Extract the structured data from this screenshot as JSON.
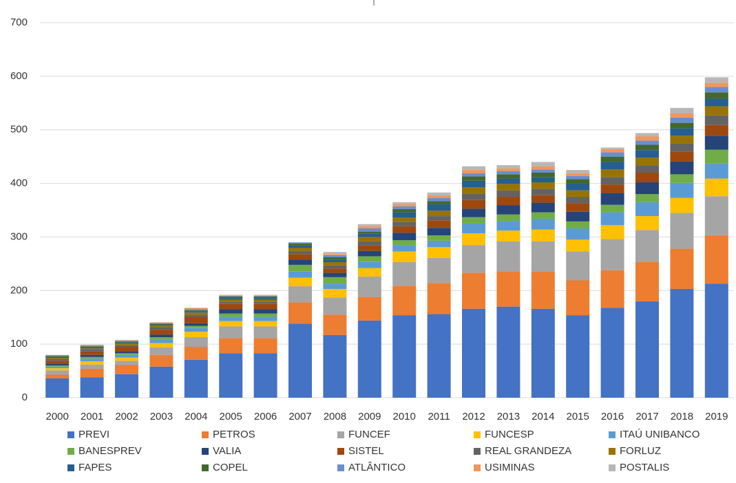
{
  "chart_data": {
    "type": "stacked_bar",
    "categories": [
      "2000",
      "2001",
      "2002",
      "2003",
      "2004",
      "2005",
      "2006",
      "2007",
      "2008",
      "2009",
      "2010",
      "2011",
      "2012",
      "2013",
      "2014",
      "2015",
      "2016",
      "2017",
      "2018",
      "2019"
    ],
    "ylim": [
      0,
      700
    ],
    "yticks": [
      0,
      100,
      200,
      300,
      400,
      500,
      600,
      700
    ],
    "grid": true,
    "legend": "bottom",
    "series": [
      {
        "name": "PREVI",
        "color": "#4472c4",
        "values": [
          36,
          38,
          44,
          58,
          71,
          83,
          83,
          138,
          117,
          144,
          154,
          156,
          166,
          170,
          166,
          154,
          168,
          180,
          203,
          213
        ]
      },
      {
        "name": "PETROS",
        "color": "#ed7d31",
        "values": [
          7,
          16,
          17,
          22,
          24,
          28,
          28,
          40,
          38,
          44,
          55,
          58,
          67,
          65,
          69,
          65,
          70,
          73,
          75,
          90
        ]
      },
      {
        "name": "FUNCEF",
        "color": "#a5a5a5",
        "values": [
          8,
          8,
          8,
          14,
          18,
          22,
          22,
          30,
          32,
          38,
          44,
          47,
          52,
          57,
          57,
          54,
          58,
          60,
          67,
          73
        ]
      },
      {
        "name": "FUNCESP",
        "color": "#ffc000",
        "values": [
          4,
          6,
          6,
          8,
          10,
          10,
          10,
          16,
          16,
          16,
          20,
          20,
          22,
          20,
          22,
          22,
          26,
          26,
          28,
          33
        ]
      },
      {
        "name": "ITAÚ UNIBANCO",
        "color": "#5b9bd5",
        "values": [
          3,
          5,
          5,
          7,
          7,
          8,
          8,
          12,
          10,
          12,
          12,
          12,
          18,
          18,
          20,
          21,
          24,
          26,
          28,
          28
        ]
      },
      {
        "name": "BANESPREV",
        "color": "#70ad47",
        "values": [
          2,
          3,
          3,
          4,
          4,
          6,
          6,
          12,
          12,
          10,
          9,
          10,
          12,
          12,
          12,
          13,
          14,
          15,
          16,
          26
        ]
      },
      {
        "name": "VALIA",
        "color": "#264478",
        "values": [
          3,
          4,
          4,
          5,
          5,
          8,
          8,
          10,
          8,
          10,
          14,
          14,
          16,
          17,
          18,
          18,
          22,
          22,
          24,
          26
        ]
      },
      {
        "name": "SISTEL",
        "color": "#9e480e",
        "values": [
          6,
          7,
          8,
          9,
          12,
          10,
          10,
          10,
          8,
          10,
          12,
          14,
          16,
          16,
          14,
          16,
          16,
          18,
          18,
          20
        ]
      },
      {
        "name": "REAL GRANDEZA",
        "color": "#636363",
        "values": [
          3,
          3,
          3,
          4,
          4,
          4,
          4,
          6,
          6,
          8,
          8,
          8,
          12,
          12,
          12,
          12,
          14,
          14,
          16,
          18
        ]
      },
      {
        "name": "FORLUZ",
        "color": "#997300",
        "values": [
          2,
          2,
          3,
          3,
          4,
          4,
          4,
          6,
          6,
          8,
          8,
          10,
          12,
          12,
          12,
          12,
          14,
          14,
          14,
          17
        ]
      },
      {
        "name": "FAPES",
        "color": "#255e91",
        "values": [
          2,
          2,
          2,
          2,
          2,
          3,
          3,
          4,
          5,
          6,
          10,
          12,
          12,
          10,
          10,
          13,
          14,
          14,
          14,
          14
        ]
      },
      {
        "name": "COPEL",
        "color": "#43682b",
        "values": [
          2,
          2,
          2,
          2,
          2,
          3,
          3,
          4,
          4,
          4,
          6,
          6,
          8,
          8,
          8,
          8,
          10,
          10,
          10,
          12
        ]
      },
      {
        "name": "ATLÂNTICO",
        "color": "#698ed0",
        "values": [
          1,
          1,
          1,
          1,
          2,
          1,
          1,
          2,
          4,
          6,
          5,
          6,
          6,
          6,
          6,
          6,
          8,
          8,
          10,
          10
        ]
      },
      {
        "name": "USIMINAS",
        "color": "#f1975a",
        "values": [
          0,
          1,
          1,
          1,
          2,
          1,
          1,
          0,
          2,
          4,
          4,
          5,
          6,
          5,
          6,
          5,
          6,
          8,
          8,
          8
        ]
      },
      {
        "name": "POSTALIS",
        "color": "#b7b7b7",
        "values": [
          1,
          1,
          1,
          1,
          1,
          1,
          1,
          0,
          4,
          4,
          4,
          5,
          7,
          6,
          8,
          6,
          3,
          6,
          10,
          10
        ]
      }
    ]
  }
}
